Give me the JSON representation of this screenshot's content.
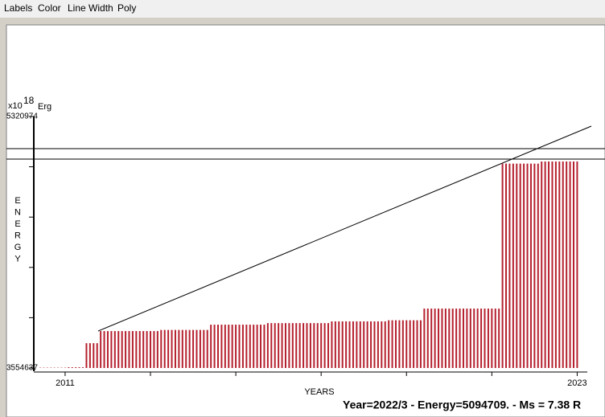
{
  "menu": [
    "Labels",
    "Color",
    "Line Width",
    "Poly"
  ],
  "chart_data": {
    "type": "bar",
    "y_unit_base": "x10",
    "y_unit_exp": "18",
    "y_unit": "Erg",
    "y_label": "ENERGY",
    "x_label": "YEARS",
    "status": "Year=2022/3 - Energy=5094709. - Ms = 7.38 R",
    "color": "#b5202e",
    "ylim": [
      3554637,
      5320974
    ],
    "yticks": [
      3554637,
      5320974
    ],
    "categories": [
      null,
      null,
      null,
      null,
      null,
      null,
      null,
      "2011",
      null,
      null,
      null,
      null,
      null,
      null,
      null,
      null,
      null,
      null,
      null,
      null,
      null,
      null,
      null,
      null,
      null,
      null,
      null,
      null,
      null,
      null,
      null,
      null,
      null,
      null,
      null,
      null,
      null,
      null,
      null,
      null,
      null,
      null,
      null,
      null,
      null,
      null,
      null,
      null,
      null,
      null,
      null,
      null,
      null,
      null,
      null,
      null,
      null,
      null,
      null,
      null,
      null,
      null,
      null,
      null,
      null,
      null,
      null,
      null,
      null,
      null,
      null,
      null,
      null,
      null,
      null,
      null,
      null,
      null,
      null,
      null,
      null,
      null,
      null,
      null,
      null,
      null,
      null,
      null,
      null,
      null,
      null,
      null,
      null,
      null,
      null,
      null,
      null,
      null,
      null,
      null,
      null,
      null,
      null,
      null,
      null,
      null,
      null,
      null,
      null,
      null,
      null,
      null,
      null,
      null,
      null,
      null,
      null,
      null,
      null,
      null,
      null,
      null,
      null,
      null,
      null,
      null,
      null,
      null,
      null,
      null,
      null,
      null,
      null,
      null,
      null,
      null,
      null,
      null,
      null,
      null,
      null,
      null,
      null,
      null,
      null,
      null,
      null,
      null,
      null,
      null,
      null,
      "2023"
    ],
    "values": [
      3557000,
      3557000,
      3557000,
      3557000,
      3557000,
      3557000,
      3557000,
      3557000,
      3560000,
      3560000,
      3560000,
      3560000,
      3560000,
      3729000,
      3729000,
      3729000,
      3729000,
      3814000,
      3814000,
      3814000,
      3814000,
      3814000,
      3814000,
      3814000,
      3814000,
      3814000,
      3814000,
      3814000,
      3814000,
      3814000,
      3814000,
      3814000,
      3814000,
      3814000,
      3822000,
      3822000,
      3822000,
      3822000,
      3822000,
      3822000,
      3822000,
      3822000,
      3822000,
      3822000,
      3822000,
      3822000,
      3822000,
      3822000,
      3859000,
      3859000,
      3859000,
      3859000,
      3859000,
      3859000,
      3859000,
      3859000,
      3859000,
      3859000,
      3859000,
      3859000,
      3859000,
      3859000,
      3859000,
      3859000,
      3870000,
      3870000,
      3870000,
      3870000,
      3870000,
      3870000,
      3870000,
      3870000,
      3870000,
      3870000,
      3870000,
      3870000,
      3870000,
      3870000,
      3870000,
      3870000,
      3870000,
      3870000,
      3882000,
      3882000,
      3882000,
      3882000,
      3882000,
      3882000,
      3882000,
      3882000,
      3882000,
      3882000,
      3882000,
      3882000,
      3882000,
      3882000,
      3882000,
      3882000,
      3890000,
      3890000,
      3890000,
      3890000,
      3890000,
      3890000,
      3890000,
      3890000,
      3890000,
      3890000,
      3972000,
      3972000,
      3972000,
      3972000,
      3972000,
      3972000,
      3972000,
      3972000,
      3972000,
      3972000,
      3972000,
      3972000,
      3972000,
      3972000,
      3972000,
      3972000,
      3972000,
      3972000,
      3972000,
      3972000,
      3972000,
      3972000,
      4990000,
      4990000,
      4990000,
      4990000,
      4990000,
      4990000,
      4990000,
      4990000,
      4990000,
      4990000,
      4990000,
      5005000,
      5005000,
      5005000,
      5005000,
      5005000,
      5005000,
      5005000,
      5005000,
      5005000,
      5005000,
      5005000
    ]
  }
}
